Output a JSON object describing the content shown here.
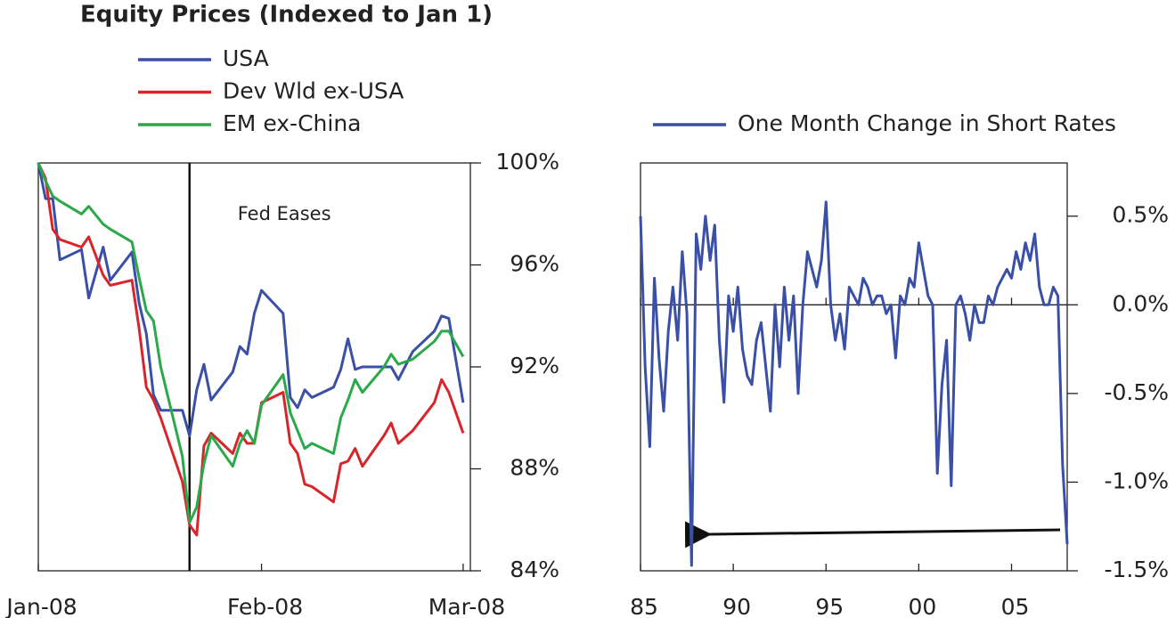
{
  "chart_data": [
    {
      "type": "line",
      "title": "Equity Prices (Indexed to Jan 1)",
      "annotation": "Fed Eases",
      "event_x": 21,
      "x": [
        0,
        1,
        2,
        3,
        6,
        7,
        9,
        10,
        13,
        14,
        15,
        16,
        17,
        20,
        21,
        22,
        23,
        24,
        27,
        28,
        29,
        30,
        31,
        34,
        35,
        36,
        37,
        38,
        41,
        42,
        43,
        44,
        45,
        48,
        49,
        50,
        52,
        55,
        56,
        57,
        59
      ],
      "series": [
        {
          "name": "USA",
          "color": "#3a4fa6",
          "values": [
            100,
            98.6,
            98.6,
            96.2,
            96.6,
            94.7,
            96.7,
            95.4,
            96.5,
            94.5,
            93.3,
            90.9,
            90.3,
            90.3,
            89.3,
            91.1,
            92.1,
            90.7,
            91.8,
            92.8,
            92.5,
            94.1,
            95.0,
            94.1,
            90.8,
            90.4,
            91.1,
            90.8,
            91.2,
            91.9,
            93.1,
            91.9,
            92.0,
            92.0,
            92.0,
            91.5,
            92.6,
            93.4,
            94.0,
            93.9,
            90.6
          ]
        },
        {
          "name": "Dev Wld ex-USA",
          "color": "#d9252a",
          "values": [
            100,
            99.4,
            97.4,
            97.0,
            96.7,
            97.1,
            95.6,
            95.2,
            95.4,
            93.5,
            91.2,
            90.7,
            90.0,
            87.5,
            85.8,
            85.4,
            88.9,
            89.4,
            88.6,
            89.4,
            89.0,
            89.0,
            90.6,
            91.0,
            89.0,
            88.6,
            87.4,
            87.3,
            86.7,
            88.2,
            88.3,
            88.8,
            88.1,
            89.3,
            89.8,
            89.0,
            89.5,
            90.6,
            91.5,
            91.0,
            89.4
          ]
        },
        {
          "name": "EM ex-China",
          "color": "#2ba84a",
          "values": [
            100,
            99.3,
            98.7,
            98.5,
            98.0,
            98.3,
            97.6,
            97.4,
            96.9,
            95.5,
            94.2,
            93.8,
            92.0,
            88.5,
            85.9,
            86.5,
            88.2,
            89.3,
            88.1,
            89.0,
            89.5,
            89.0,
            90.5,
            91.7,
            90.2,
            89.5,
            88.8,
            89.0,
            88.6,
            90.0,
            90.7,
            91.5,
            91.0,
            92.0,
            92.5,
            92.1,
            92.3,
            93.0,
            93.4,
            93.4,
            92.4
          ]
        }
      ],
      "xlim": [
        0,
        60
      ],
      "xticks": [
        {
          "value": 0,
          "label": "Jan-08"
        },
        {
          "value": 31,
          "label": "Feb-08"
        },
        {
          "value": 59,
          "label": "Mar-08"
        }
      ],
      "ylim": [
        84,
        100
      ],
      "yticks": [
        {
          "value": 100,
          "label": "100%"
        },
        {
          "value": 96,
          "label": "96%"
        },
        {
          "value": 92,
          "label": "92%"
        },
        {
          "value": 88,
          "label": "88%"
        },
        {
          "value": 84,
          "label": "84%"
        }
      ]
    },
    {
      "type": "line",
      "hline": 0,
      "x": [
        1985,
        1985.25,
        1985.5,
        1985.75,
        1986,
        1986.25,
        1986.5,
        1986.75,
        1987,
        1987.25,
        1987.5,
        1987.75,
        1988,
        1988.25,
        1988.5,
        1988.75,
        1989,
        1989.25,
        1989.5,
        1989.75,
        1990,
        1990.25,
        1990.5,
        1990.75,
        1991,
        1991.25,
        1991.5,
        1991.75,
        1992,
        1992.25,
        1992.5,
        1992.75,
        1993,
        1993.25,
        1993.5,
        1993.75,
        1994,
        1994.25,
        1994.5,
        1994.75,
        1995,
        1995.25,
        1995.5,
        1995.75,
        1996,
        1996.25,
        1996.5,
        1996.75,
        1997,
        1997.25,
        1997.5,
        1997.75,
        1998,
        1998.25,
        1998.5,
        1998.75,
        1999,
        1999.25,
        1999.5,
        1999.75,
        2000,
        2000.25,
        2000.5,
        2000.75,
        2001,
        2001.25,
        2001.5,
        2001.75,
        2002,
        2002.25,
        2002.5,
        2002.75,
        2003,
        2003.25,
        2003.5,
        2003.75,
        2004,
        2004.25,
        2004.5,
        2004.75,
        2005,
        2005.25,
        2005.5,
        2005.75,
        2006,
        2006.25,
        2006.5,
        2006.75,
        2007,
        2007.25,
        2007.5,
        2007.75,
        2008
      ],
      "series": [
        {
          "name": "One Month Change in Short Rates",
          "color": "#3a4fa6",
          "values": [
            0.5,
            -0.35,
            -0.8,
            0.15,
            -0.3,
            -0.6,
            -0.15,
            0.1,
            -0.2,
            0.3,
            -0.05,
            -1.47,
            0.4,
            0.2,
            0.5,
            0.25,
            0.45,
            -0.2,
            -0.55,
            0.05,
            -0.15,
            0.1,
            -0.25,
            -0.4,
            -0.45,
            -0.2,
            -0.1,
            -0.35,
            -0.6,
            0,
            -0.35,
            0.1,
            -0.2,
            0.05,
            -0.5,
            0,
            0.3,
            0.2,
            0.1,
            0.25,
            0.58,
            0,
            -0.2,
            -0.05,
            -0.25,
            0.1,
            0.05,
            0,
            0.15,
            0.1,
            0,
            0.05,
            0.05,
            -0.05,
            0,
            -0.3,
            0.05,
            0,
            0.15,
            0.1,
            0.35,
            0.2,
            0.05,
            0,
            -0.95,
            -0.45,
            -0.2,
            -1.02,
            0,
            0.05,
            -0.05,
            -0.2,
            0,
            -0.1,
            -0.1,
            0.05,
            0,
            0.1,
            0.15,
            0.2,
            0.15,
            0.3,
            0.2,
            0.35,
            0.25,
            0.4,
            0.1,
            0,
            0,
            0.1,
            0.05,
            -0.9,
            -1.35
          ]
        }
      ],
      "xlim": [
        1985,
        2008
      ],
      "xticks": [
        {
          "value": 1985,
          "label": "85"
        },
        {
          "value": 1990,
          "label": "90"
        },
        {
          "value": 1995,
          "label": "95"
        },
        {
          "value": 2000,
          "label": "00"
        },
        {
          "value": 2005,
          "label": "05"
        }
      ],
      "ylim": [
        -1.5,
        0.8
      ],
      "yticks": [
        {
          "value": 0.5,
          "label": "0.5%"
        },
        {
          "value": 0,
          "label": "0.0%"
        },
        {
          "value": -0.5,
          "label": "-0.5%"
        },
        {
          "value": -1,
          "label": "-1.0%"
        },
        {
          "value": -1.5,
          "label": "-1.5%"
        }
      ]
    }
  ]
}
